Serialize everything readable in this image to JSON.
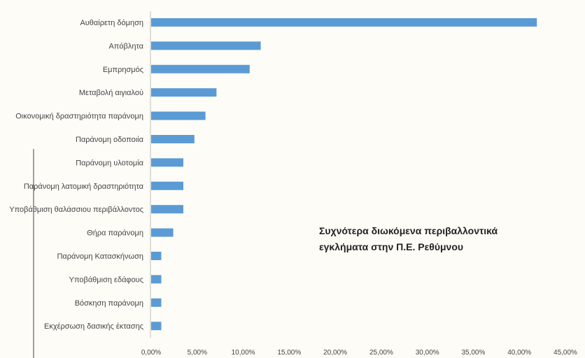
{
  "chart_data": {
    "type": "bar",
    "orientation": "horizontal",
    "title_lines": [
      "Συχνότερα διωκόμενα περιβαλλοντικά",
      "εγκλήματα στην Π.Ε. Ρεθύμνου"
    ],
    "categories": [
      "Αυθαίρετη δόμηση",
      "Απόβλητα",
      "Εμπρησμός",
      "Μεταβολή αιγιαλού",
      "Οικονομική δραστηριότητα παράνομη",
      "Παράνομη οδοποιία",
      "Παράνομη υλοτομία",
      "Παράνομη λατομική δραστηριότητα",
      "Υποβάθμιση θαλάσσιου περιβάλλοντος",
      "Θήρα παράνομη",
      "Παράνομη Κατασκήνωση",
      "Υποβάθμιση εδάφους",
      "Βόσκηση παράνομη",
      "Εκχέρσωση δασικής έκτασης"
    ],
    "values": [
      41.9,
      11.9,
      10.7,
      7.1,
      5.9,
      4.7,
      3.5,
      3.5,
      3.5,
      2.4,
      1.1,
      1.1,
      1.1,
      1.1
    ],
    "unit": "%",
    "xlim": [
      0,
      45
    ],
    "x_ticks": [
      "0,00%",
      "5,00%",
      "10,00%",
      "15,00%",
      "20,00%",
      "25,00%",
      "30,00%",
      "35,00%",
      "40,00%",
      "45,00%"
    ],
    "x_tick_values": [
      0,
      5,
      10,
      15,
      20,
      25,
      30,
      35,
      40,
      45
    ],
    "grid": false,
    "bar_color": "#5b9bd5"
  }
}
